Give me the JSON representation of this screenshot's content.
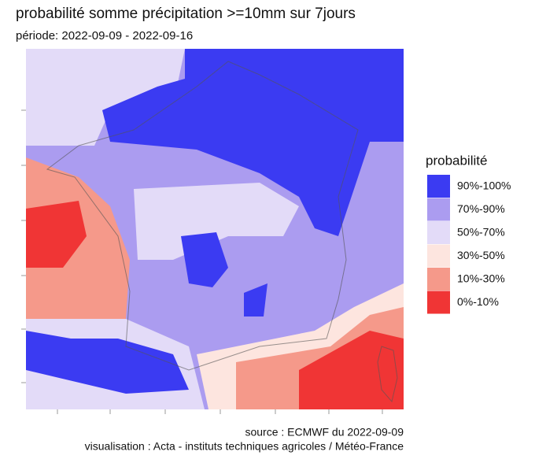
{
  "header": {
    "title": "probabilité somme précipitation >=10mm sur 7jours",
    "subtitle": "période: 2022-09-09 - 2022-09-16"
  },
  "legend": {
    "title": "probabilité",
    "items": [
      {
        "label": "90%-100%",
        "color": "#3b3bf2"
      },
      {
        "label": "70%-90%",
        "color": "#ab9cf0"
      },
      {
        "label": "50%-70%",
        "color": "#e3dbf8"
      },
      {
        "label": "30%-50%",
        "color": "#fde5df"
      },
      {
        "label": "10%-30%",
        "color": "#f5998a"
      },
      {
        "label": "0%-10%",
        "color": "#f03535"
      }
    ]
  },
  "footer": {
    "source": "source : ECMWF du 2022-09-09",
    "credit": "visualisation : Acta - instituts techniques agricoles / Météo-France"
  }
}
